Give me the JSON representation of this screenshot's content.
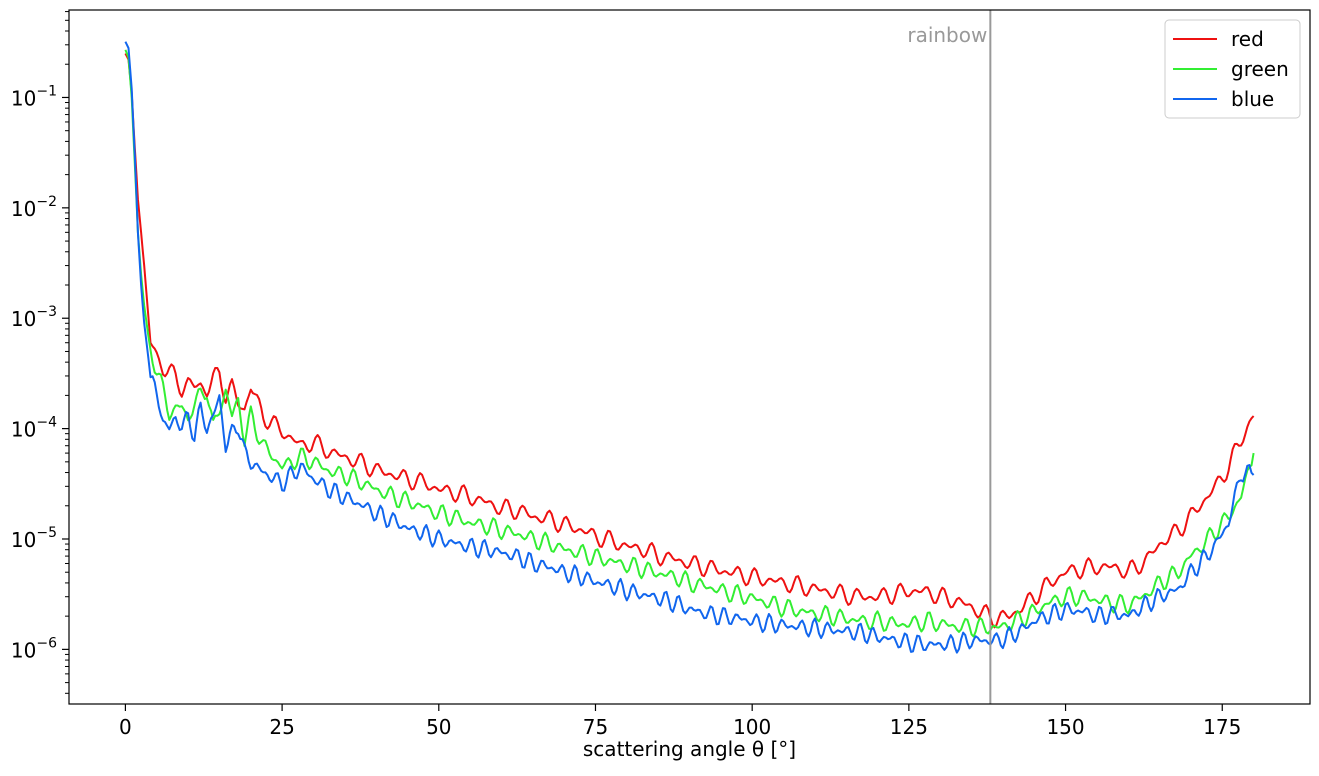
{
  "chart_data": {
    "type": "line",
    "title": "",
    "xlabel": "scattering angle θ [°]",
    "ylabel": "",
    "xlim": [
      -9,
      189
    ],
    "ylim": [
      3.2e-07,
      0.62
    ],
    "yscale": "log",
    "grid": false,
    "legend_position": "top-right",
    "x_ticks": [
      {
        "value": 0,
        "label": "0"
      },
      {
        "value": 25,
        "label": "25"
      },
      {
        "value": 50,
        "label": "50"
      },
      {
        "value": 75,
        "label": "75"
      },
      {
        "value": 100,
        "label": "100"
      },
      {
        "value": 125,
        "label": "125"
      },
      {
        "value": 150,
        "label": "150"
      },
      {
        "value": 175,
        "label": "175"
      }
    ],
    "y_ticks": [
      {
        "value": 1e-06,
        "base": "10",
        "exp": "−6"
      },
      {
        "value": 1e-05,
        "base": "10",
        "exp": "−5"
      },
      {
        "value": 0.0001,
        "base": "10",
        "exp": "−4"
      },
      {
        "value": 0.001,
        "base": "10",
        "exp": "−3"
      },
      {
        "value": 0.01,
        "base": "10",
        "exp": "−2"
      },
      {
        "value": 0.1,
        "base": "10",
        "exp": "−1"
      }
    ],
    "annotation": {
      "label": "rainbow",
      "x": 138,
      "color": "#999999"
    },
    "series": [
      {
        "name": "red",
        "color": "#ee1111",
        "x": [
          0,
          0.5,
          1,
          1.5,
          2,
          2.5,
          3,
          4,
          5,
          6,
          7,
          8,
          9,
          10,
          11,
          12,
          13,
          14,
          15,
          16,
          17,
          18,
          19,
          20,
          22,
          25,
          28,
          30,
          33,
          35,
          38,
          40,
          43,
          45,
          48,
          50,
          53,
          55,
          58,
          60,
          63,
          65,
          68,
          70,
          73,
          75,
          78,
          80,
          83,
          85,
          88,
          90,
          93,
          95,
          98,
          100,
          103,
          105,
          108,
          110,
          113,
          115,
          118,
          120,
          123,
          125,
          128,
          130,
          133,
          135,
          137,
          139,
          141,
          143,
          145,
          147,
          150,
          153,
          155,
          158,
          160,
          163,
          165,
          168,
          170,
          172,
          174,
          176,
          178,
          180
        ],
        "y": [
          0.25,
          0.22,
          0.11,
          0.035,
          0.012,
          0.006,
          0.003,
          0.0006,
          0.00045,
          0.00036,
          0.00033,
          0.00029,
          0.00023,
          0.00026,
          0.00024,
          0.00025,
          0.00022,
          0.00028,
          0.00032,
          0.0002,
          0.00024,
          0.00017,
          0.00015,
          0.00024,
          0.00013,
          9.5e-05,
          7e-05,
          7.5e-05,
          6e-05,
          5.5e-05,
          4.8e-05,
          4.2e-05,
          3.8e-05,
          3.5e-05,
          3.2e-05,
          2.8e-05,
          2.6e-05,
          2.4e-05,
          2.1e-05,
          1.9e-05,
          1.8e-05,
          1.6e-05,
          1.5e-05,
          1.35e-05,
          1.2e-05,
          1.05e-05,
          9.5e-06,
          8.5e-06,
          8e-06,
          7e-06,
          6.5e-06,
          6e-06,
          5.5e-06,
          5.2e-06,
          4.8e-06,
          4.5e-06,
          4.2e-06,
          4e-06,
          3.7e-06,
          3.5e-06,
          3.3e-06,
          3.1e-06,
          3e-06,
          3e-06,
          3.2e-06,
          3.4e-06,
          3.3e-06,
          3e-06,
          2.7e-06,
          2.4e-06,
          2.1e-06,
          1.9e-06,
          2e-06,
          2.4e-06,
          3e-06,
          3.8e-06,
          5e-06,
          5.4e-06,
          5.6e-06,
          5.5e-06,
          5e-06,
          6.5e-06,
          9e-06,
          1.2e-05,
          1.6e-05,
          2.2e-05,
          3e-05,
          4.5e-05,
          8e-05,
          0.00013
        ]
      },
      {
        "name": "green",
        "color": "#33ee33",
        "x": [
          0,
          0.5,
          1,
          1.5,
          2,
          2.5,
          3,
          4,
          5,
          6,
          7,
          8,
          9,
          10,
          11,
          12,
          13,
          14,
          15,
          16,
          17,
          18,
          19,
          20,
          22,
          25,
          28,
          30,
          33,
          35,
          38,
          40,
          43,
          45,
          48,
          50,
          53,
          55,
          58,
          60,
          63,
          65,
          68,
          70,
          73,
          75,
          78,
          80,
          83,
          85,
          88,
          90,
          93,
          95,
          98,
          100,
          103,
          105,
          108,
          110,
          113,
          115,
          118,
          120,
          123,
          125,
          128,
          130,
          133,
          135,
          137,
          139,
          141,
          143,
          145,
          147,
          150,
          153,
          155,
          158,
          160,
          163,
          165,
          168,
          170,
          172,
          174,
          176,
          178,
          180
        ],
        "y": [
          0.27,
          0.23,
          0.1,
          0.025,
          0.006,
          0.0025,
          0.0013,
          0.0005,
          0.00035,
          0.00022,
          0.00014,
          0.00015,
          0.00016,
          0.00012,
          0.00017,
          0.0002,
          0.00023,
          0.0001,
          0.00015,
          0.00022,
          0.00013,
          0.00018,
          8e-05,
          0.00013,
          7e-05,
          4.5e-05,
          5.5e-05,
          5e-05,
          4e-05,
          3.8e-05,
          3.2e-05,
          2.8e-05,
          2.4e-05,
          2.2e-05,
          1.9e-05,
          1.7e-05,
          1.55e-05,
          1.4e-05,
          1.3e-05,
          1.2e-05,
          1.1e-05,
          1e-05,
          9e-06,
          8e-06,
          7.4e-06,
          6.8e-06,
          6.2e-06,
          5.8e-06,
          5.3e-06,
          4.9e-06,
          4.5e-06,
          4e-06,
          3.7e-06,
          3.4e-06,
          3.1e-06,
          2.9e-06,
          2.6e-06,
          2.4e-06,
          2.2e-06,
          2.1e-06,
          2e-06,
          1.9e-06,
          1.8e-06,
          1.8e-06,
          1.7e-06,
          1.7e-06,
          1.8e-06,
          1.7e-06,
          1.6e-06,
          1.6e-06,
          1.6e-06,
          1.55e-06,
          1.7e-06,
          1.9e-06,
          2.2e-06,
          2.6e-06,
          3e-06,
          3e-06,
          2.8e-06,
          2.6e-06,
          2.5e-06,
          3.2e-06,
          4e-06,
          5e-06,
          7e-06,
          9e-06,
          1.2e-05,
          1.6e-05,
          2.4e-05,
          6e-05
        ]
      },
      {
        "name": "blue",
        "color": "#1166ee",
        "x": [
          0,
          0.5,
          1,
          1.5,
          2,
          2.5,
          3,
          4,
          5,
          6,
          7,
          8,
          9,
          10,
          11,
          12,
          13,
          14,
          15,
          16,
          17,
          18,
          19,
          20,
          22,
          25,
          28,
          30,
          33,
          35,
          38,
          40,
          43,
          45,
          48,
          50,
          53,
          55,
          58,
          60,
          63,
          65,
          68,
          70,
          73,
          75,
          78,
          80,
          83,
          85,
          88,
          90,
          93,
          95,
          98,
          100,
          103,
          105,
          108,
          110,
          113,
          115,
          118,
          120,
          123,
          125,
          128,
          130,
          133,
          135,
          137,
          139,
          141,
          143,
          145,
          147,
          150,
          153,
          155,
          158,
          160,
          163,
          165,
          168,
          170,
          172,
          174,
          176,
          178,
          180
        ],
        "y": [
          0.32,
          0.28,
          0.12,
          0.03,
          0.006,
          0.002,
          0.0009,
          0.0003,
          0.0002,
          0.00012,
          0.0001,
          0.00012,
          0.00011,
          0.00012,
          9e-05,
          0.00015,
          0.0001,
          0.00013,
          0.00019,
          7e-05,
          9e-05,
          0.00011,
          6e-05,
          5e-05,
          4e-05,
          3.2e-05,
          4.5e-05,
          3.5e-05,
          2.7e-05,
          2.4e-05,
          2e-05,
          1.7e-05,
          1.45e-05,
          1.25e-05,
          1.1e-05,
          1e-05,
          9e-06,
          8.5e-06,
          8e-06,
          7.5e-06,
          6.8e-06,
          6e-06,
          5.5e-06,
          5e-06,
          4.5e-06,
          4.1e-06,
          3.7e-06,
          3.4e-06,
          3.1e-06,
          2.9e-06,
          2.6e-06,
          2.3e-06,
          2.1e-06,
          2e-06,
          1.9e-06,
          1.8e-06,
          1.7e-06,
          1.65e-06,
          1.6e-06,
          1.55e-06,
          1.5e-06,
          1.45e-06,
          1.4e-06,
          1.3e-06,
          1.2e-06,
          1.15e-06,
          1.1e-06,
          1.1e-06,
          1.15e-06,
          1.2e-06,
          1.2e-06,
          1.2e-06,
          1.3e-06,
          1.5e-06,
          1.8e-06,
          2e-06,
          2.3e-06,
          2.2e-06,
          2e-06,
          2.1e-06,
          2e-06,
          2.6e-06,
          3e-06,
          3.5e-06,
          5e-06,
          6.5e-06,
          9e-06,
          1.4e-05,
          4e-05,
          3.8e-05
        ]
      }
    ]
  }
}
